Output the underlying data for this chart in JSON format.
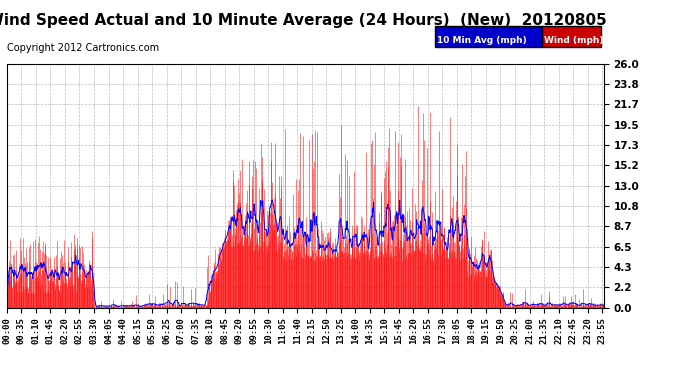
{
  "title": "Wind Speed Actual and 10 Minute Average (24 Hours)  (New)  20120805",
  "copyright": "Copyright 2012 Cartronics.com",
  "legend_avg_label": "10 Min Avg (mph)",
  "legend_wind_label": "Wind (mph)",
  "legend_avg_bg": "#0000cc",
  "legend_wind_bg": "#cc0000",
  "y_ticks": [
    0.0,
    2.2,
    4.3,
    6.5,
    8.7,
    10.8,
    13.0,
    15.2,
    17.3,
    19.5,
    21.7,
    23.8,
    26.0
  ],
  "ymax": 26.0,
  "ymin": 0.0,
  "background_color": "#ffffff",
  "plot_bg": "#ffffff",
  "grid_color": "#bbbbbb",
  "title_fontsize": 11,
  "copyright_fontsize": 7,
  "tick_label_fontsize": 6.5,
  "ytick_label_fontsize": 7.5
}
